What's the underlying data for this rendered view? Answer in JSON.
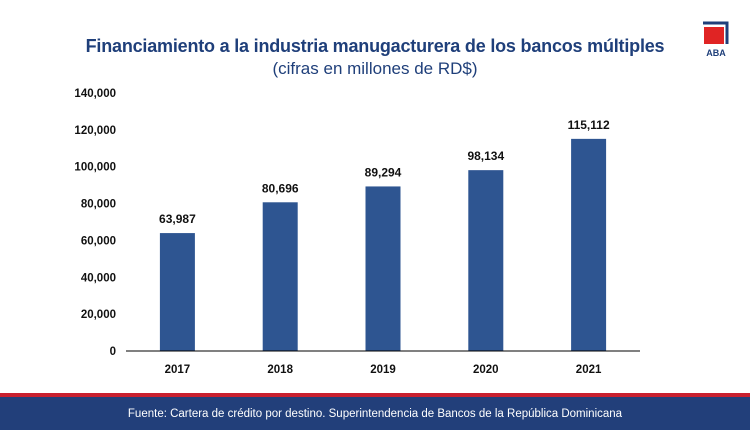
{
  "header": {
    "title": "Financiamiento a la industria manugacturera de los bancos múltiples",
    "subtitle": "(cifras en millones de RD$)"
  },
  "logo": {
    "text": "ABA",
    "icon": "aba-logo-icon"
  },
  "chart_data": {
    "type": "bar",
    "title": "Financiamiento a la industria manugacturera de los bancos múltiples",
    "subtitle": "(cifras en millones de RD$)",
    "xlabel": "",
    "ylabel": "",
    "categories": [
      "2017",
      "2018",
      "2019",
      "2020",
      "2021"
    ],
    "values": [
      63987,
      80696,
      89294,
      98134,
      115112
    ],
    "data_labels": [
      "63,987",
      "80,696",
      "89,294",
      "98,134",
      "115,112"
    ],
    "ylim": [
      0,
      140000
    ],
    "yticks": [
      0,
      20000,
      40000,
      60000,
      80000,
      100000,
      120000,
      140000
    ],
    "ytick_labels": [
      "0",
      "20,000",
      "40,000",
      "60,000",
      "80,000",
      "100,000",
      "120,000",
      "140,000"
    ],
    "grid": false,
    "colors": {
      "bar": "#2e5591",
      "axis": "#000000",
      "text": "#111111"
    }
  },
  "footer": {
    "source": "Fuente: Cartera de crédito por destino. Superintendencia de Bancos de la República Dominicana"
  },
  "colors": {
    "title": "#1f3f7a",
    "footer_bg": "#223f7a",
    "accent_red": "#c8202f"
  }
}
